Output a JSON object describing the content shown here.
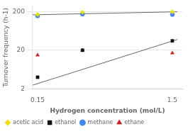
{
  "chart_data": {
    "type": "scatter",
    "xlabel": "Hydrogen concentration (mol/L)",
    "ylabel": "Turnover frequency (h-1)",
    "log": "y",
    "xlim": [
      0.1,
      1.6
    ],
    "ylim": [
      2,
      280
    ],
    "xticks": [
      0.15,
      1.5
    ],
    "yticks": [
      2,
      20,
      200
    ],
    "grid": "y",
    "legend": "lower left",
    "x": [
      0.15,
      0.6,
      1.5
    ],
    "series": [
      {
        "type": "line",
        "x": [
          0.1,
          1.55
        ],
        "values": [
          165,
          198
        ],
        "color": "#666666"
      },
      {
        "type": "line",
        "x": [
          0.1,
          1.55
        ],
        "values": [
          2.5,
          38.0
        ],
        "color": "#666666"
      },
      {
        "name": "acetic acid",
        "values": [
          168,
          192,
          197
        ],
        "color": "#e8e000",
        "marker": "diamond"
      },
      {
        "name": "ethanol",
        "values": [
          4.0,
          20.0,
          35.0
        ],
        "color": "#111111",
        "marker": "square"
      },
      {
        "name": "methane",
        "values": [
          155,
          172,
          168
        ],
        "color": "#4488ee",
        "marker": "circle"
      },
      {
        "name": "ethane",
        "values": [
          15,
          20,
          17
        ],
        "color": "#cc2222",
        "marker": "triangle"
      }
    ]
  }
}
